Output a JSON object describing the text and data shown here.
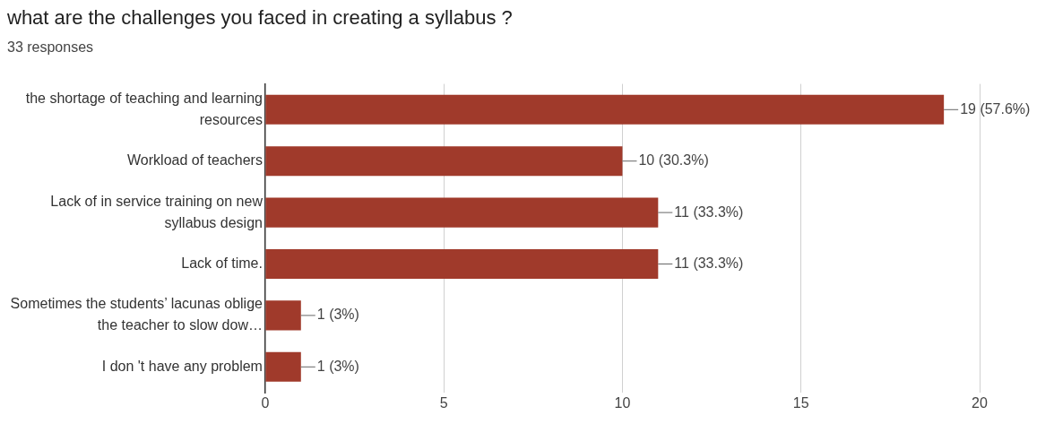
{
  "chart_data": {
    "type": "bar",
    "orientation": "horizontal",
    "title": "what are the challenges you faced in creating a syllabus ?",
    "subtitle": "33 responses",
    "categories": [
      "the shortage of teaching and learning resources",
      "Workload of teachers",
      "Lack of in service training on new syllabus design",
      "Lack of time.",
      "Sometimes the students’ lacunas oblige the teacher to slow dow…",
      "I don 't have any problem"
    ],
    "values": [
      19,
      10,
      11,
      11,
      1,
      1
    ],
    "value_labels": [
      "19 (57.6%)",
      "10 (30.3%)",
      "11 (33.3%)",
      "11 (33.3%)",
      "1 (3%)",
      "1 (3%)"
    ],
    "color": "#a03a2b",
    "xlim": [
      0,
      20
    ],
    "xticks": [
      0,
      5,
      10,
      15,
      20
    ],
    "grid": "x",
    "legend": false
  }
}
